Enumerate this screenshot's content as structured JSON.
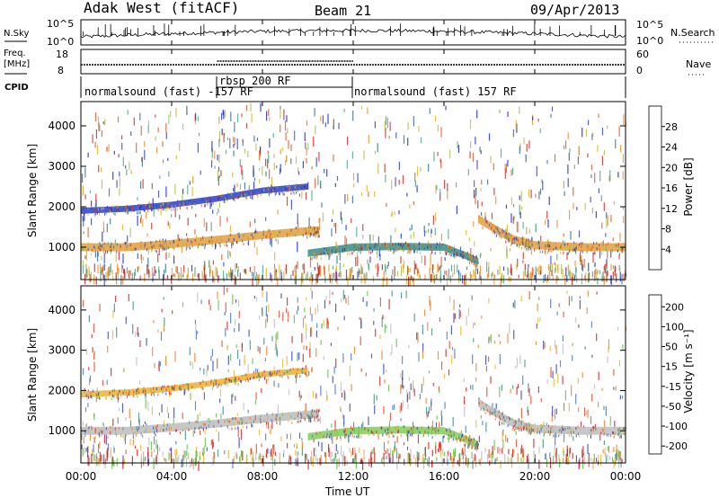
{
  "header": {
    "station": "Adak West (fitACF)",
    "beam": "Beam 21",
    "date": "09/Apr/2013"
  },
  "summary_panels": {
    "nsky_label": "N.Sky",
    "nsky_ticks": [
      "10^5",
      "10^0"
    ],
    "nsearch_label": "N.Search",
    "nsearch_ticks": [
      "10^5",
      "10^0"
    ],
    "freq_label_line1": "Freq.",
    "freq_label_line2": "[MHz]",
    "freq_ticks": [
      "18",
      "8"
    ],
    "nave_label": "Nave",
    "nave_ticks": [
      "60",
      "0"
    ],
    "cpid_label": "CPID",
    "cpid_segments": [
      {
        "label": "normalsound (fast) -157 RF",
        "start_hour": 0,
        "end_hour": 12
      },
      {
        "label": "rbsp 200 RF",
        "start_hour": 6,
        "end_hour": 12
      },
      {
        "label": "normalsound (fast) 157 RF",
        "start_hour": 12,
        "end_hour": 24
      }
    ]
  },
  "axes": {
    "ylabel": "Slant Range [km]",
    "yticks": [
      "1000",
      "2000",
      "3000",
      "4000"
    ],
    "xticks": [
      "00:00",
      "04:00",
      "08:00",
      "12:00",
      "16:00",
      "20:00",
      "00:00"
    ],
    "xlabel": "Time UT"
  },
  "colorbars": {
    "power": {
      "label": "Power [dB]",
      "ticks": [
        "4",
        "8",
        "12",
        "16",
        "20",
        "24",
        "28"
      ],
      "colors": [
        "#0b1fe0",
        "#2a3fc0",
        "#2f6a8a",
        "#4aa383",
        "#a7bb4c",
        "#e0b020",
        "#f08a20",
        "#e85020",
        "#d42020"
      ]
    },
    "velocity": {
      "label": "Velocity [m s⁻¹]",
      "ticks": [
        "200",
        "100",
        "50",
        "15",
        "-15",
        "-50",
        "-100",
        "-200"
      ],
      "colors": [
        "#2a3fb8",
        "#3f72c8",
        "#3b8f7a",
        "#58c040",
        "#bdbdbd",
        "#f0b030",
        "#f07a20",
        "#e84020",
        "#d81818"
      ]
    }
  },
  "chart_data": [
    {
      "type": "heatmap",
      "title": "Power",
      "xlabel": "Time UT",
      "ylabel": "Slant Range [km]",
      "xlim": [
        0,
        24
      ],
      "ylim": [
        200,
        4600
      ],
      "bands": [
        {
          "name": "near-range band",
          "x": [
            0,
            2,
            4,
            6,
            8,
            10,
            10.5
          ],
          "y": [
            1000,
            1000,
            1080,
            1180,
            1300,
            1400,
            1420
          ],
          "width_km": 200,
          "color": "#e0a040"
        },
        {
          "name": "upper band",
          "x": [
            0,
            2,
            4,
            6,
            8,
            10
          ],
          "y": [
            1900,
            1950,
            2050,
            2200,
            2400,
            2500
          ],
          "width_km": 150,
          "color": "#2a3fc0"
        },
        {
          "name": "mid-day band",
          "x": [
            10,
            12,
            14,
            16,
            17,
            17.5
          ],
          "y": [
            850,
            1000,
            1020,
            1000,
            780,
            650
          ],
          "width_km": 180,
          "color": "#3f8a80"
        },
        {
          "name": "evening band",
          "x": [
            17.5,
            19,
            20,
            22,
            24
          ],
          "y": [
            1700,
            1200,
            1050,
            1000,
            1000
          ],
          "width_km": 200,
          "color": "#e0a040"
        }
      ]
    },
    {
      "type": "heatmap",
      "title": "Velocity",
      "xlabel": "Time UT",
      "ylabel": "Slant Range [km]",
      "xlim": [
        0,
        24
      ],
      "ylim": [
        200,
        4600
      ],
      "bands": [
        {
          "name": "near-range band",
          "x": [
            0,
            2,
            4,
            6,
            8,
            10,
            10.5
          ],
          "y": [
            1000,
            1000,
            1080,
            1180,
            1300,
            1400,
            1420
          ],
          "width_km": 200,
          "color": "#bdbdbd"
        },
        {
          "name": "upper band",
          "x": [
            0,
            2,
            4,
            6,
            8,
            10
          ],
          "y": [
            1900,
            1950,
            2050,
            2200,
            2400,
            2500
          ],
          "width_km": 150,
          "color": "#f0b030"
        },
        {
          "name": "mid-day band",
          "x": [
            10,
            12,
            14,
            16,
            17,
            17.5
          ],
          "y": [
            850,
            1000,
            1020,
            1000,
            780,
            650
          ],
          "width_km": 180,
          "color": "#7fcf58"
        },
        {
          "name": "evening band",
          "x": [
            17.5,
            19,
            20,
            22,
            24
          ],
          "y": [
            1700,
            1200,
            1050,
            1000,
            1000
          ],
          "width_km": 200,
          "color": "#bdbdbd"
        }
      ]
    }
  ]
}
